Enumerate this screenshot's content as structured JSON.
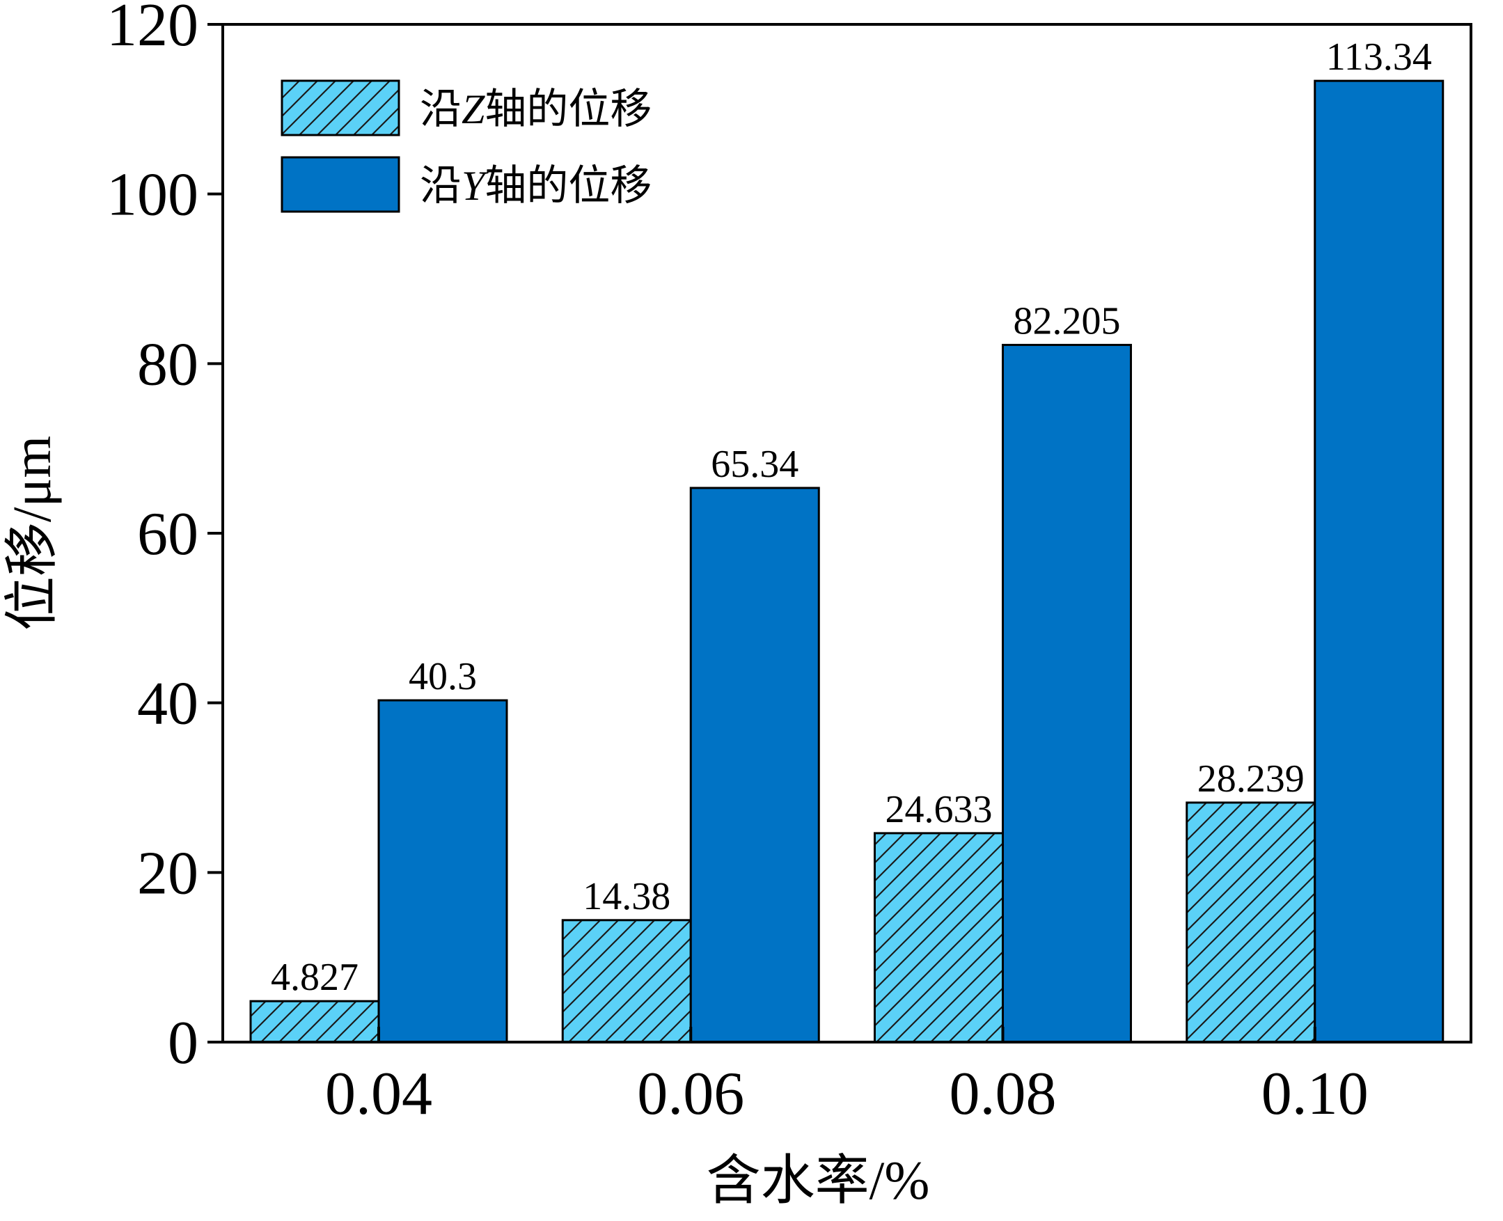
{
  "chart_data": {
    "type": "bar",
    "title": "",
    "xlabel": "含水率/%",
    "ylabel": "位移/μm",
    "ylim": [
      0,
      120
    ],
    "yticks": [
      0,
      20,
      40,
      60,
      80,
      100,
      120
    ],
    "grid": false,
    "legend_position": "top-left",
    "categories": [
      "0.04",
      "0.06",
      "0.08",
      "0.10"
    ],
    "series": [
      {
        "name": "沿Z轴的位移",
        "name_prefix": "沿",
        "name_axis": "Z",
        "name_suffix": "轴的位移",
        "color": "#5BD1F7",
        "hatch": "diagonal",
        "values": [
          4.827,
          14.38,
          24.633,
          28.239
        ],
        "labels": [
          "4.827",
          "14.38",
          "24.633",
          "28.239"
        ]
      },
      {
        "name": "沿Y轴的位移",
        "name_prefix": "沿",
        "name_axis": "Y",
        "name_suffix": "轴的位移",
        "color": "#0073C5",
        "hatch": "none",
        "values": [
          40.3,
          65.34,
          82.205,
          113.34
        ],
        "labels": [
          "40.3",
          "65.34",
          "82.205",
          "113.34"
        ]
      }
    ]
  }
}
